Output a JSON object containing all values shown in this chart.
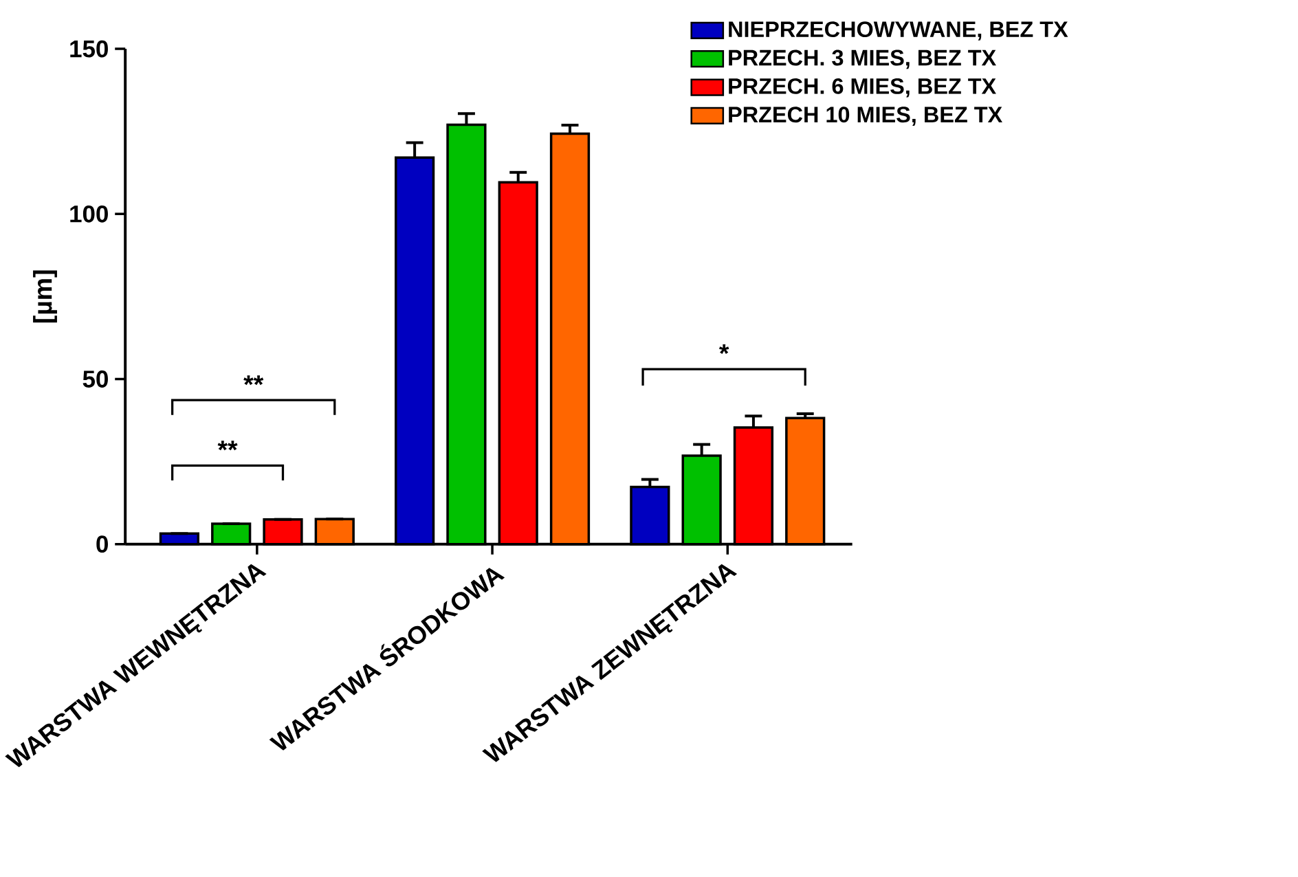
{
  "chart_data": {
    "type": "bar",
    "ylabel": "[µm]",
    "categories": [
      "WARSTWA WEWNĘTRZNA",
      "WARSTWA ŚRODKOWA",
      "WARSTWA ZEWNĘTRZNA"
    ],
    "series": [
      {
        "name": "NIEPRZECHOWYWANE, BEZ TX",
        "color": "#0000c0",
        "values": [
          3.2,
          117.1,
          17.3
        ],
        "errors": [
          null,
          4.5,
          2.3
        ]
      },
      {
        "name": "PRZECH. 3 MIES, BEZ TX",
        "color": "#00c000",
        "values": [
          6.2,
          127.0,
          26.8
        ],
        "errors": [
          null,
          3.4,
          3.4
        ]
      },
      {
        "name": "PRZECH. 6 MIES, BEZ TX",
        "color": "#ff0000",
        "values": [
          7.5,
          109.6,
          35.3
        ],
        "errors": [
          null,
          3.0,
          3.5
        ]
      },
      {
        "name": "PRZECH 10 MIES, BEZ TX",
        "color": "#ff6600",
        "values": [
          7.6,
          124.3,
          38.2
        ],
        "errors": [
          null,
          2.6,
          1.3
        ]
      }
    ],
    "ylim": [
      0,
      150
    ],
    "yticks": [
      0,
      50,
      100,
      150
    ],
    "legend": "top right",
    "annotations": [
      "**",
      "**",
      "*"
    ]
  }
}
